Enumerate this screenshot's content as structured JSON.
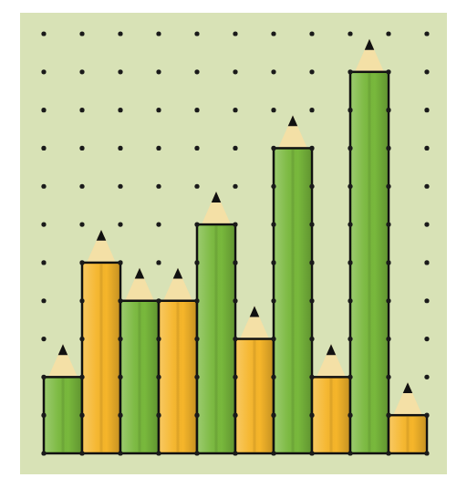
{
  "chart_data": {
    "type": "bar",
    "categories": [
      null,
      null,
      null,
      null,
      null,
      null,
      null,
      null,
      null,
      null
    ],
    "values": [
      2,
      5,
      4,
      4,
      6,
      3,
      8,
      2,
      10,
      1
    ],
    "colors": [
      "#78b83c",
      "#f5b52a",
      "#78b83c",
      "#f5b52a",
      "#78b83c",
      "#f5b52a",
      "#78b83c",
      "#f5b52a",
      "#78b83c",
      "#f5b52a"
    ],
    "ylim": [
      0,
      11
    ],
    "yticks": [
      0,
      1,
      2,
      3,
      4,
      5,
      6,
      7,
      8,
      9,
      10,
      11
    ],
    "grid": true,
    "tick_labels": false
  }
}
